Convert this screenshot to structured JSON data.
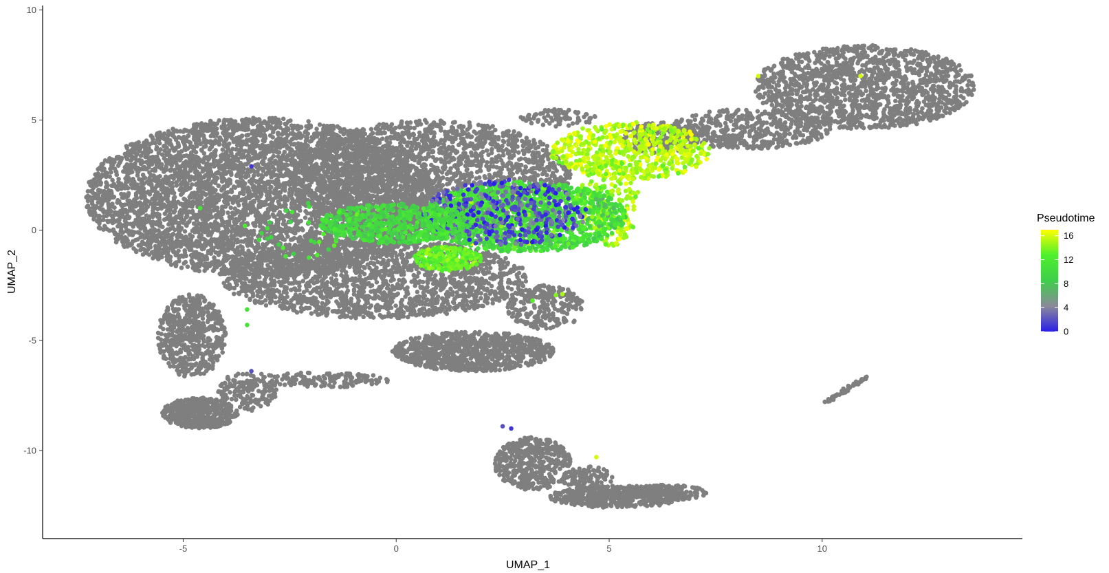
{
  "chart_data": {
    "type": "scatter",
    "title": "",
    "xlabel": "UMAP_1",
    "ylabel": "UMAP_2",
    "xlim": [
      -8.3,
      14.7
    ],
    "ylim": [
      -14,
      10.2
    ],
    "xticks": [
      -5,
      0,
      5,
      10
    ],
    "yticks": [
      -10,
      -5,
      0,
      5,
      10
    ],
    "grid": false,
    "point_color_na": "#7f7f7f",
    "legend": {
      "title": "Pseudotime",
      "position": "right",
      "ticks": [
        0,
        4,
        8,
        12,
        16
      ],
      "range": [
        0,
        17
      ],
      "colors": [
        "#2b1ee8",
        "#8a8a9a",
        "#3fce4a",
        "#4df02c",
        "#ffff00"
      ]
    },
    "gray_clusters": [
      {
        "name": "main-body",
        "ellipses": [
          {
            "cx": -3.2,
            "cy": 1.5,
            "rx": 4.1,
            "ry": 3.6,
            "n": 5200
          },
          {
            "cx": 0.8,
            "cy": 2.4,
            "rx": 3.3,
            "ry": 2.6,
            "n": 2200
          },
          {
            "cx": -0.5,
            "cy": -2.2,
            "rx": 3.6,
            "ry": 1.8,
            "n": 1800
          },
          {
            "cx": 1.8,
            "cy": -5.5,
            "rx": 1.9,
            "ry": 0.9,
            "n": 900
          },
          {
            "cx": 3.5,
            "cy": -3.5,
            "rx": 0.9,
            "ry": 1.0,
            "n": 250
          },
          {
            "cx": -4.8,
            "cy": -4.8,
            "rx": 0.8,
            "ry": 1.9,
            "n": 550
          },
          {
            "cx": -4.6,
            "cy": -8.3,
            "rx": 0.9,
            "ry": 0.7,
            "n": 500
          },
          {
            "cx": -3.5,
            "cy": -7.3,
            "rx": 0.7,
            "ry": 0.9,
            "n": 150
          },
          {
            "cx": -1.8,
            "cy": -6.8,
            "rx": 1.7,
            "ry": 0.35,
            "n": 150
          }
        ]
      },
      {
        "name": "upper-right-lobe",
        "ellipses": [
          {
            "cx": 11.0,
            "cy": 6.5,
            "rx": 2.6,
            "ry": 1.9,
            "n": 1500
          },
          {
            "cx": 8.3,
            "cy": 4.6,
            "rx": 1.9,
            "ry": 0.9,
            "n": 500
          },
          {
            "cx": 6.2,
            "cy": 4.2,
            "rx": 0.9,
            "ry": 0.7,
            "n": 200
          },
          {
            "cx": 3.8,
            "cy": 5.1,
            "rx": 0.9,
            "ry": 0.4,
            "n": 80
          }
        ]
      },
      {
        "name": "lower-cluster",
        "ellipses": [
          {
            "cx": 3.2,
            "cy": -10.6,
            "rx": 0.9,
            "ry": 1.2,
            "n": 450
          },
          {
            "cx": 5.2,
            "cy": -12.1,
            "rx": 1.6,
            "ry": 0.5,
            "n": 500
          },
          {
            "cx": 6.4,
            "cy": -11.9,
            "rx": 0.9,
            "ry": 0.35,
            "n": 150
          },
          {
            "cx": 4.5,
            "cy": -11.3,
            "rx": 0.6,
            "ry": 0.6,
            "n": 120
          }
        ]
      }
    ],
    "gray_segments": [
      {
        "x0": 10.1,
        "y0": -7.8,
        "x1": 11.1,
        "y1": -6.6,
        "n": 60
      }
    ],
    "colored_clusters": [
      {
        "cx": 5.5,
        "cy": 3.6,
        "rx": 1.9,
        "ry": 1.3,
        "n": 600,
        "pt_mean": 15.2,
        "pt_sd": 1.0
      },
      {
        "cx": 5.0,
        "cy": 1.2,
        "rx": 0.7,
        "ry": 2.0,
        "n": 200,
        "pt_mean": 14.8,
        "pt_sd": 1.0
      },
      {
        "cx": 3.0,
        "cy": 0.6,
        "rx": 2.4,
        "ry": 1.6,
        "n": 1500,
        "pt_mean": 10.5,
        "pt_sd": 1.8
      },
      {
        "cx": 2.5,
        "cy": 0.8,
        "rx": 2.0,
        "ry": 1.5,
        "n": 350,
        "pt_mean": 1.5,
        "pt_sd": 1.5
      },
      {
        "cx": 0.0,
        "cy": 0.3,
        "rx": 1.8,
        "ry": 0.9,
        "n": 550,
        "pt_mean": 10.0,
        "pt_sd": 1.3
      },
      {
        "cx": 1.2,
        "cy": -1.3,
        "rx": 0.8,
        "ry": 0.55,
        "n": 220,
        "pt_mean": 13.0,
        "pt_sd": 1.0
      },
      {
        "cx": -2.0,
        "cy": 0.0,
        "rx": 1.6,
        "ry": 1.3,
        "n": 30,
        "pt_mean": 10.0,
        "pt_sd": 1.5
      }
    ],
    "colored_points": [
      {
        "x": -3.5,
        "y": -3.6,
        "pt": 11
      },
      {
        "x": -3.5,
        "y": -4.3,
        "pt": 11
      },
      {
        "x": -3.4,
        "y": -6.4,
        "pt": 2
      },
      {
        "x": 2.7,
        "y": -9.0,
        "pt": 1
      },
      {
        "x": 2.5,
        "y": -8.9,
        "pt": 2
      },
      {
        "x": 4.7,
        "y": -10.3,
        "pt": 16
      },
      {
        "x": 3.9,
        "y": -2.9,
        "pt": 15
      },
      {
        "x": 3.75,
        "y": -2.95,
        "pt": 14
      },
      {
        "x": 8.5,
        "y": 7.0,
        "pt": 16
      },
      {
        "x": 10.9,
        "y": 7.0,
        "pt": 16
      },
      {
        "x": 3.2,
        "y": -3.2,
        "pt": 13
      },
      {
        "x": -3.4,
        "y": 2.9,
        "pt": 1
      },
      {
        "x": -4.6,
        "y": 1.0,
        "pt": 11
      }
    ]
  }
}
